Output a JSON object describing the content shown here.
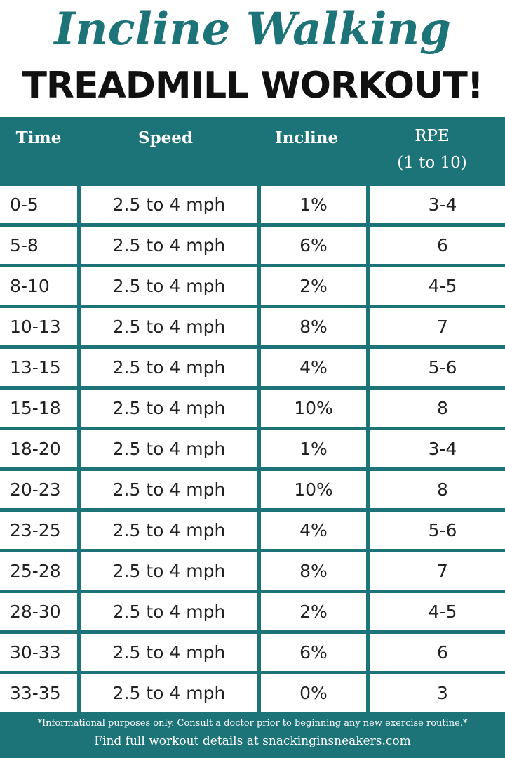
{
  "header": {
    "title": "Incline Walking",
    "subtitle": "TREADMILL WORKOUT!"
  },
  "table": {
    "columns": [
      "Time",
      "Speed",
      "Incline",
      "RPE\n(1 to 10)"
    ],
    "rows": [
      [
        "0-5",
        "2.5 to 4 mph",
        "1%",
        "3-4"
      ],
      [
        "5-8",
        "2.5 to 4 mph",
        "6%",
        "6"
      ],
      [
        "8-10",
        "2.5 to 4 mph",
        "2%",
        "4-5"
      ],
      [
        "10-13",
        "2.5 to 4 mph",
        "8%",
        "7"
      ],
      [
        "13-15",
        "2.5 to 4 mph",
        "4%",
        "5-6"
      ],
      [
        "15-18",
        "2.5 to 4 mph",
        "10%",
        "8"
      ],
      [
        "18-20",
        "2.5 to 4 mph",
        "1%",
        "3-4"
      ],
      [
        "20-23",
        "2.5 to 4 mph",
        "10%",
        "8"
      ],
      [
        "23-25",
        "2.5 to 4 mph",
        "4%",
        "5-6"
      ],
      [
        "25-28",
        "2.5 to 4 mph",
        "8%",
        "7"
      ],
      [
        "28-30",
        "2.5 to 4 mph",
        "2%",
        "4-5"
      ],
      [
        "30-33",
        "2.5 to 4 mph",
        "6%",
        "6"
      ],
      [
        "33-35",
        "2.5 to 4 mph",
        "0%",
        "3"
      ]
    ]
  },
  "footer": {
    "disclaimer": "*Informational purposes only. Consult a doctor prior to beginning any new exercise routine.*",
    "link": "Find full workout details at snackinginsneakers.com"
  }
}
